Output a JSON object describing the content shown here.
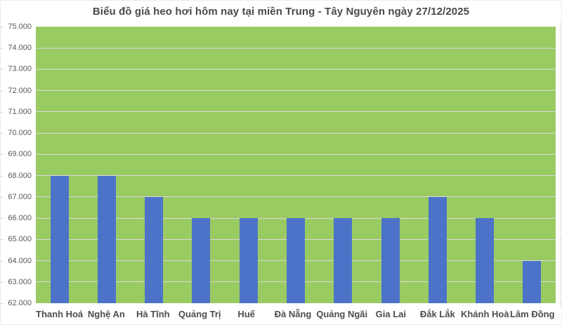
{
  "chart_data": {
    "type": "bar",
    "title": "Biểu đồ giá heo hơi hôm nay tại miền Trung - Tây Nguyên ngày 27/12/2025",
    "categories": [
      "Thanh Hoá",
      "Nghệ An",
      "Hà Tĩnh",
      "Quảng Trị",
      "Huế",
      "Đà Nẵng",
      "Quảng Ngãi",
      "Gia Lai",
      "Đắk Lắk",
      "Khánh Hoà",
      "Lâm Đồng"
    ],
    "values": [
      68000,
      68000,
      67000,
      66000,
      66000,
      66000,
      66000,
      66000,
      67000,
      66000,
      64000
    ],
    "xlabel": "",
    "ylabel": "",
    "ylim": [
      62000,
      75000
    ],
    "ytick_step": 1000,
    "ytick_labels": [
      "62.000",
      "63.000",
      "64.000",
      "65.000",
      "66.000",
      "67.000",
      "68.000",
      "69.000",
      "70.000",
      "71.000",
      "72.000",
      "73.000",
      "74.000",
      "75.000"
    ],
    "grid": true,
    "legend": false,
    "colors": {
      "plot_background": "#9ACB63",
      "bar_fill": "#4D73C8",
      "gridline": "#d9d9d9",
      "title_text": "#4a4a4a",
      "y_tick_text": "#595959",
      "x_tick_text": "#4d4d4d",
      "edge_tick": "#c9c9c9",
      "edge_line": "#e3e3e3"
    }
  }
}
